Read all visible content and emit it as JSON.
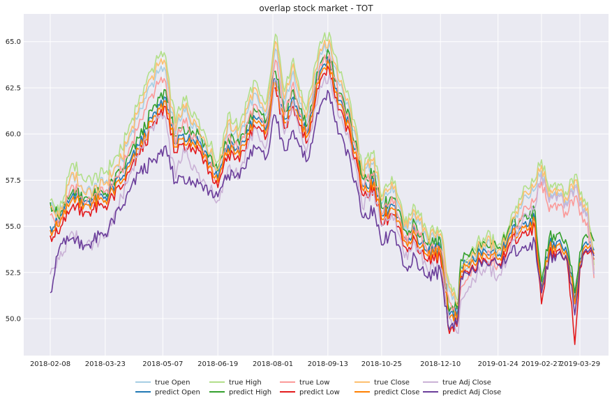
{
  "chart_data": {
    "type": "line",
    "title": "overlap stock market - TOT",
    "xlabel": "",
    "ylabel": "",
    "x_ticks": [
      "2018-02-08",
      "2018-03-23",
      "2018-05-07",
      "2018-06-19",
      "2018-08-01",
      "2018-09-13",
      "2018-10-25",
      "2018-12-10",
      "2019-01-24",
      "2019-02-27",
      "2019-03-29"
    ],
    "y_ticks": [
      "50.0",
      "52.5",
      "55.0",
      "57.5",
      "60.0",
      "62.5",
      "65.0"
    ],
    "ylim": [
      48.0,
      66.5
    ],
    "grid": true,
    "legend_position": "bottom-center",
    "keyframes_x": [
      "2018-02-08",
      "2018-02-15",
      "2018-02-26",
      "2018-03-08",
      "2018-03-23",
      "2018-04-05",
      "2018-04-19",
      "2018-05-01",
      "2018-05-08",
      "2018-05-17",
      "2018-05-23",
      "2018-06-04",
      "2018-06-19",
      "2018-06-27",
      "2018-07-06",
      "2018-07-17",
      "2018-07-26",
      "2018-08-03",
      "2018-08-10",
      "2018-08-17",
      "2018-08-27",
      "2018-09-07",
      "2018-09-14",
      "2018-09-21",
      "2018-10-01",
      "2018-10-10",
      "2018-10-19",
      "2018-10-25",
      "2018-11-02",
      "2018-11-12",
      "2018-11-20",
      "2018-11-30",
      "2018-12-10",
      "2018-12-17",
      "2018-12-24",
      "2018-12-26",
      "2019-01-04",
      "2019-01-15",
      "2019-01-24",
      "2019-02-01",
      "2019-02-12",
      "2019-02-22",
      "2019-02-27",
      "2019-03-05",
      "2019-03-12",
      "2019-03-19",
      "2019-03-25",
      "2019-03-29",
      "2019-04-04",
      "2019-04-09"
    ],
    "series": [
      {
        "name": "true Open",
        "color": "#a6cee3",
        "values": [
          56.2,
          55.6,
          57.8,
          56.8,
          57.4,
          58.6,
          61.4,
          63.0,
          63.6,
          60.0,
          61.4,
          60.2,
          58.0,
          60.5,
          59.8,
          62.2,
          61.0,
          64.6,
          61.6,
          63.4,
          60.6,
          64.4,
          64.9,
          62.8,
          61.0,
          57.6,
          58.5,
          56.2,
          57.2,
          54.8,
          55.6,
          54.2,
          54.4,
          51.5,
          50.5,
          52.3,
          53.4,
          54.0,
          53.5,
          54.4,
          56.2,
          57.0,
          58.0,
          56.4,
          56.8,
          56.2,
          57.2,
          56.2,
          55.8,
          52.4
        ]
      },
      {
        "name": "predict Open",
        "color": "#1f78b4",
        "values": [
          55.0,
          55.2,
          56.8,
          56.4,
          56.6,
          57.6,
          59.4,
          61.2,
          62.0,
          59.5,
          60.0,
          59.6,
          57.6,
          59.4,
          59.0,
          61.0,
          60.2,
          63.0,
          60.8,
          62.0,
          60.0,
          63.4,
          64.0,
          61.8,
          60.2,
          57.2,
          57.6,
          55.6,
          56.2,
          54.4,
          54.8,
          53.6,
          53.8,
          50.2,
          50.6,
          52.8,
          53.4,
          53.6,
          53.4,
          54.4,
          55.2,
          55.4,
          51.6,
          54.0,
          54.2,
          53.6,
          51.0,
          53.2,
          54.0,
          53.7
        ]
      },
      {
        "name": "true High",
        "color": "#b2df8a",
        "values": [
          56.4,
          55.8,
          58.4,
          57.4,
          57.9,
          59.2,
          62.1,
          63.8,
          64.4,
          60.6,
          62.0,
          60.8,
          58.5,
          61.1,
          60.4,
          62.9,
          61.6,
          65.4,
          62.3,
          64.1,
          61.3,
          65.0,
          65.5,
          63.5,
          61.6,
          58.1,
          59.1,
          56.6,
          57.7,
          55.2,
          56.1,
          54.6,
          54.8,
          51.9,
          51.0,
          52.8,
          53.9,
          54.5,
          54.0,
          54.9,
          56.7,
          57.5,
          58.6,
          56.9,
          57.3,
          56.7,
          57.8,
          56.7,
          56.3,
          52.9
        ]
      },
      {
        "name": "predict High",
        "color": "#33a02c",
        "values": [
          56.3,
          55.4,
          57.0,
          56.6,
          56.8,
          58.0,
          59.8,
          61.6,
          62.4,
          59.9,
          60.4,
          60.0,
          58.0,
          59.8,
          59.4,
          61.4,
          60.6,
          63.4,
          61.2,
          62.4,
          60.4,
          63.8,
          64.4,
          62.2,
          60.6,
          57.6,
          58.0,
          56.0,
          56.6,
          54.8,
          55.2,
          54.0,
          54.2,
          50.4,
          51.0,
          53.2,
          53.8,
          54.0,
          53.8,
          54.8,
          55.6,
          55.8,
          52.0,
          54.4,
          54.6,
          54.0,
          51.4,
          53.6,
          54.4,
          54.2
        ]
      },
      {
        "name": "true Low",
        "color": "#fb9a99",
        "values": [
          55.6,
          55.0,
          57.2,
          56.2,
          56.9,
          58.0,
          60.8,
          62.4,
          63.0,
          59.4,
          60.8,
          59.6,
          57.4,
          59.9,
          59.2,
          61.6,
          60.4,
          64.0,
          61.0,
          62.8,
          60.0,
          63.8,
          64.3,
          62.2,
          60.4,
          57.0,
          57.9,
          55.6,
          56.6,
          54.2,
          55.0,
          53.6,
          53.8,
          50.9,
          49.9,
          51.7,
          52.8,
          53.4,
          52.9,
          53.8,
          55.6,
          56.4,
          57.4,
          55.8,
          56.2,
          55.6,
          56.6,
          55.6,
          55.2,
          52.2
        ]
      },
      {
        "name": "predict Low",
        "color": "#e31a1c",
        "values": [
          54.5,
          54.6,
          56.2,
          55.8,
          56.1,
          57.1,
          58.9,
          60.7,
          61.5,
          59.0,
          59.5,
          59.1,
          57.1,
          58.9,
          58.5,
          60.5,
          59.7,
          62.5,
          60.3,
          61.5,
          59.5,
          62.9,
          63.5,
          61.3,
          59.7,
          56.7,
          57.1,
          55.1,
          55.7,
          53.9,
          54.3,
          53.1,
          53.3,
          49.2,
          50.1,
          52.3,
          52.9,
          53.1,
          52.9,
          53.9,
          54.7,
          54.9,
          50.8,
          53.5,
          53.7,
          53.1,
          48.6,
          52.7,
          53.5,
          53.2
        ]
      },
      {
        "name": "true Close",
        "color": "#fdbf6f",
        "values": [
          56.0,
          55.5,
          57.9,
          56.7,
          57.3,
          58.7,
          61.7,
          63.4,
          64.0,
          60.2,
          61.6,
          60.4,
          58.1,
          60.7,
          60.0,
          62.5,
          61.2,
          65.0,
          61.9,
          63.8,
          60.9,
          64.6,
          65.1,
          63.0,
          61.2,
          57.8,
          58.7,
          56.4,
          57.4,
          55.0,
          55.8,
          54.4,
          54.6,
          51.7,
          50.7,
          52.5,
          53.6,
          54.2,
          53.7,
          54.6,
          56.4,
          57.2,
          58.3,
          56.6,
          57.0,
          56.4,
          57.5,
          56.4,
          56.0,
          52.6
        ]
      },
      {
        "name": "predict Close",
        "color": "#ff7f00",
        "values": [
          54.8,
          55.0,
          56.6,
          56.2,
          56.4,
          57.4,
          59.2,
          61.0,
          61.8,
          59.3,
          59.8,
          59.4,
          57.4,
          59.2,
          58.8,
          60.8,
          60.0,
          62.8,
          60.6,
          61.8,
          59.8,
          63.2,
          63.8,
          61.6,
          60.0,
          57.0,
          57.4,
          55.4,
          56.0,
          54.2,
          54.6,
          53.4,
          53.6,
          50.0,
          50.4,
          52.6,
          53.2,
          53.4,
          53.2,
          54.2,
          55.0,
          55.2,
          51.4,
          53.8,
          54.0,
          53.4,
          50.8,
          53.0,
          53.8,
          53.5
        ]
      },
      {
        "name": "true Adj Close",
        "color": "#cab2d6",
        "values": [
          52.4,
          53.2,
          54.6,
          53.9,
          54.4,
          56.6,
          59.3,
          60.6,
          61.0,
          57.6,
          59.2,
          57.9,
          56.4,
          58.2,
          57.8,
          60.3,
          59.2,
          63.0,
          60.0,
          61.8,
          59.0,
          62.6,
          63.2,
          61.0,
          59.4,
          56.0,
          56.9,
          55.0,
          55.7,
          53.3,
          54.1,
          52.6,
          52.8,
          50.0,
          49.2,
          51.0,
          52.2,
          52.8,
          52.3,
          53.4,
          55.2,
          56.0,
          57.8,
          56.3,
          56.7,
          56.1,
          57.1,
          56.1,
          55.7,
          52.4
        ]
      },
      {
        "name": "predict Adj Close",
        "color": "#6a3d9a",
        "values": [
          51.4,
          53.8,
          54.4,
          54.0,
          54.6,
          56.0,
          57.9,
          58.6,
          59.3,
          57.4,
          57.7,
          57.3,
          56.6,
          57.8,
          57.6,
          59.4,
          58.6,
          61.0,
          59.1,
          60.2,
          58.5,
          61.5,
          62.2,
          60.0,
          58.4,
          55.5,
          56.0,
          54.0,
          54.8,
          52.8,
          53.4,
          52.2,
          52.6,
          49.4,
          50.2,
          52.2,
          52.8,
          53.0,
          52.9,
          53.4,
          53.9,
          54.1,
          51.4,
          53.3,
          53.5,
          53.2,
          50.2,
          52.8,
          53.6,
          53.4
        ]
      }
    ]
  }
}
